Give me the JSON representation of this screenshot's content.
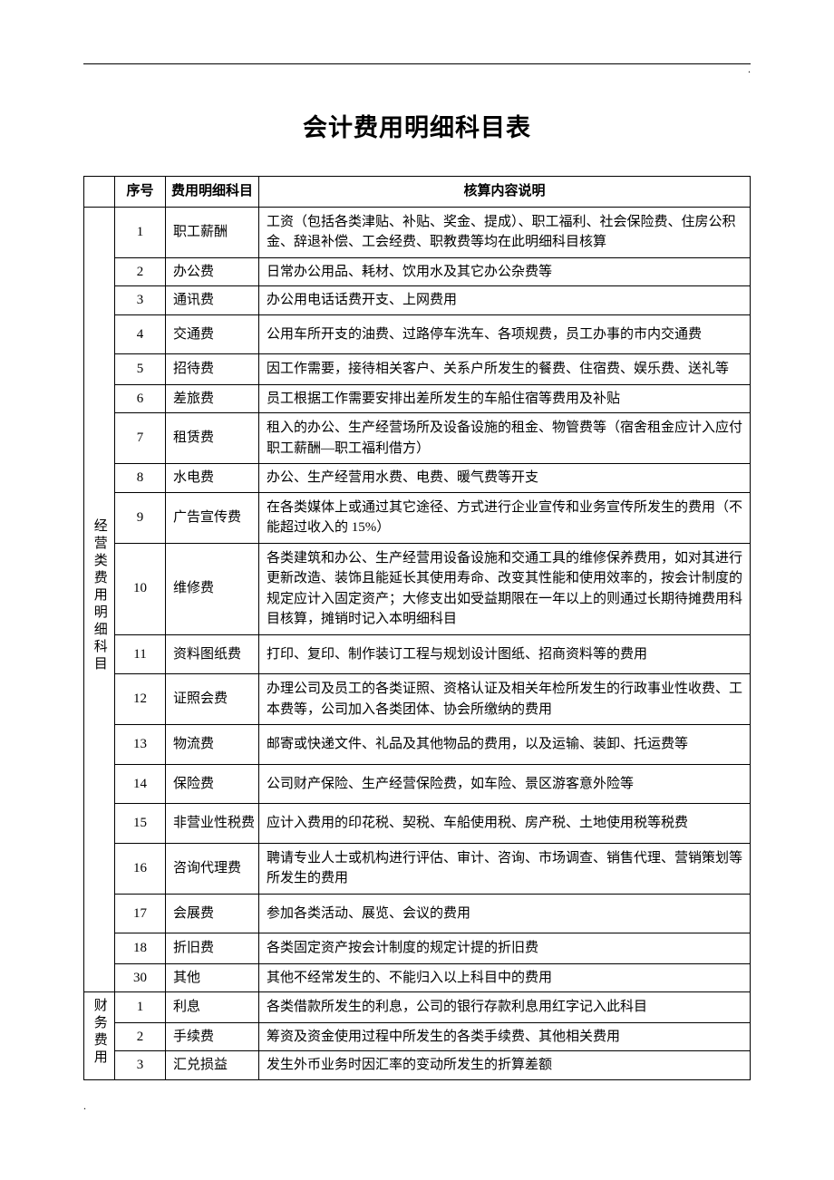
{
  "title": "会计费用明细科目表",
  "corner_mark_top": ".",
  "corner_mark_bottom": ".",
  "header": {
    "col_category": "",
    "col_num": "序号",
    "col_item": "费用明细科目",
    "col_desc": "核算内容说明"
  },
  "categories": [
    {
      "label": "经营类费用明细科目",
      "rows": [
        {
          "n": "1",
          "item": "职工薪酬",
          "desc": "工资（包括各类津贴、补贴、奖金、提成）、职工福利、社会保险费、住房公积金、辞退补偿、工会经费、职教费等均在此明细科目核算"
        },
        {
          "n": "2",
          "item": "办公费",
          "desc": "日常办公用品、耗材、饮用水及其它办公杂费等",
          "tight": true
        },
        {
          "n": "3",
          "item": "通讯费",
          "desc": "办公用电话话费开支、上网费用",
          "tight": true
        },
        {
          "n": "4",
          "item": "交通费",
          "desc": "公用车所开支的油费、过路停车洗车、各项规费，员工办事的市内交通费",
          "pad": true
        },
        {
          "n": "5",
          "item": "招待费",
          "desc": "因工作需要，接待相关客户、关系户所发生的餐费、住宿费、娱乐费、送礼等"
        },
        {
          "n": "6",
          "item": "差旅费",
          "desc": "员工根据工作需要安排出差所发生的车船住宿等费用及补贴",
          "tight": true
        },
        {
          "n": "7",
          "item": "租赁费",
          "desc": "租入的办公、生产经营场所及设备设施的租金、物管费等（宿舍租金应计入应付职工薪酬—职工福利借方）"
        },
        {
          "n": "8",
          "item": "水电费",
          "desc": "办公、生产经营用水费、电费、暖气费等开支",
          "tight": true
        },
        {
          "n": "9",
          "item": "广告宣传费",
          "desc": "在各类媒体上或通过其它途径、方式进行企业宣传和业务宣传所发生的费用（不能超过收入的 15%）"
        },
        {
          "n": "10",
          "item": "维修费",
          "desc": "各类建筑和办公、生产经营用设备设施和交通工具的维修保养费用，如对其进行更新改造、装饰且能延长其使用寿命、改变其性能和使用效率的，按会计制度的规定应计入固定资产；大修支出如受益期限在一年以上的则通过长期待摊费用科目核算，摊销时记入本明细科目"
        },
        {
          "n": "11",
          "item": "资料图纸费",
          "desc": "打印、复印、制作装订工程与规划设计图纸、招商资料等的费用",
          "pad": true
        },
        {
          "n": "12",
          "item": "证照会费",
          "desc": "办理公司及员工的各类证照、资格认证及相关年检所发生的行政事业性收费、工本费等，公司加入各类团体、协会所缴纳的费用"
        },
        {
          "n": "13",
          "item": "物流费",
          "desc": "邮寄或快递文件、礼品及其他物品的费用，以及运输、装卸、托运费等",
          "pad": true
        },
        {
          "n": "14",
          "item": "保险费",
          "desc": "公司财产保险、生产经营保险费，如车险、景区游客意外险等",
          "pad": true
        },
        {
          "n": "15",
          "item": "非营业性税费",
          "desc": "应计入费用的印花税、契税、车船使用税、房产税、土地使用税等税费",
          "pad": true
        },
        {
          "n": "16",
          "item": "咨询代理费",
          "desc": "聘请专业人士或机构进行评估、审计、咨询、市场调查、销售代理、营销策划等所发生的费用"
        },
        {
          "n": "17",
          "item": "会展费",
          "desc": "参加各类活动、展览、会议的费用",
          "pad": true
        },
        {
          "n": "18",
          "item": "折旧费",
          "desc": "各类固定资产按会计制度的规定计提的折旧费"
        },
        {
          "n": "30",
          "item": "其他",
          "desc": "其他不经常发生的、不能归入以上科目中的费用",
          "tight": true
        }
      ]
    },
    {
      "label": "财务费用",
      "rows": [
        {
          "n": "1",
          "item": "利息",
          "desc": "各类借款所发生的利息，公司的银行存款利息用红字记入此科目"
        },
        {
          "n": "2",
          "item": "手续费",
          "desc": "筹资及资金使用过程中所发生的各类手续费、其他相关费用",
          "tight": true
        },
        {
          "n": "3",
          "item": "汇兑损益",
          "desc": "发生外币业务时因汇率的变动所发生的折算差额",
          "tight": true
        }
      ]
    }
  ]
}
